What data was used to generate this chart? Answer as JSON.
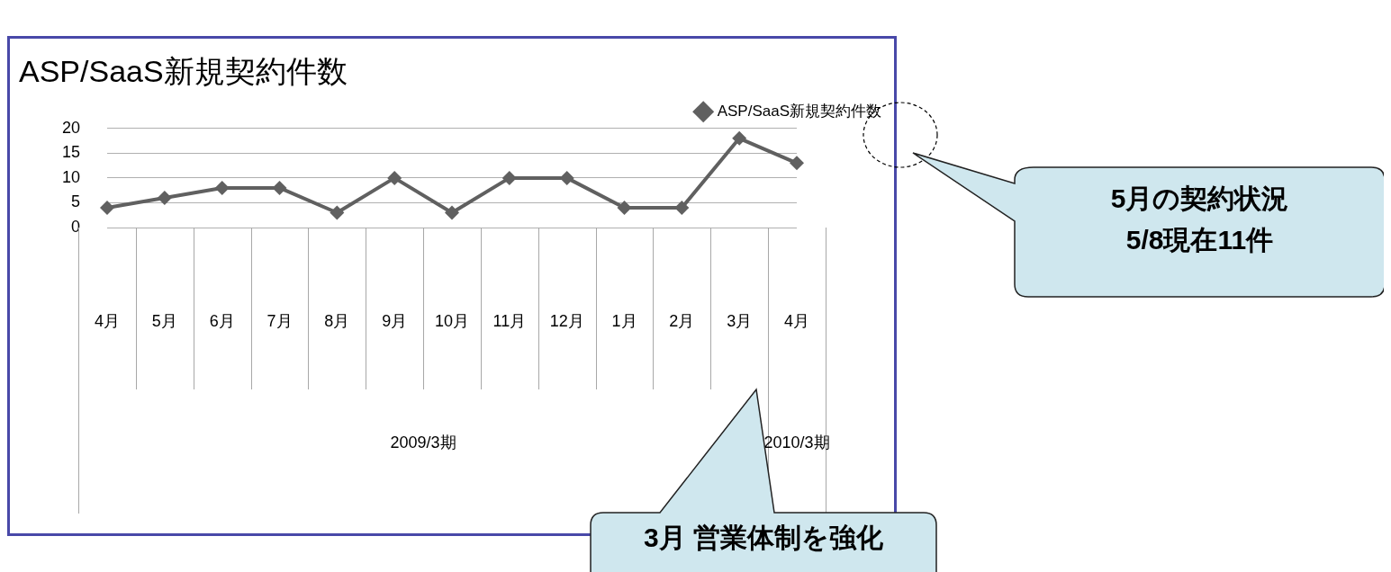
{
  "chart_data": {
    "type": "line",
    "title": "ASP/SaaS新規契約件数",
    "categories": [
      "4月",
      "5月",
      "6月",
      "7月",
      "8月",
      "9月",
      "10月",
      "11月",
      "12月",
      "1月",
      "2月",
      "3月",
      "4月"
    ],
    "series": [
      {
        "name": "ASP/SaaS新規契約件数",
        "color": "#606060",
        "values": [
          4,
          6,
          8,
          8,
          3,
          10,
          3,
          10,
          10,
          4,
          4,
          18,
          13
        ]
      }
    ],
    "ylim": [
      0,
      20
    ],
    "yticks": [
      0,
      5,
      10,
      15,
      20
    ],
    "grid": "y",
    "legend": "top right",
    "marker": "diamond",
    "line_style": "solid",
    "annotations": [
      "2009/3期",
      "2010/3期",
      "5月の契約状況\n5/8現在11件",
      "3月 営業体制を強化"
    ]
  }
}
